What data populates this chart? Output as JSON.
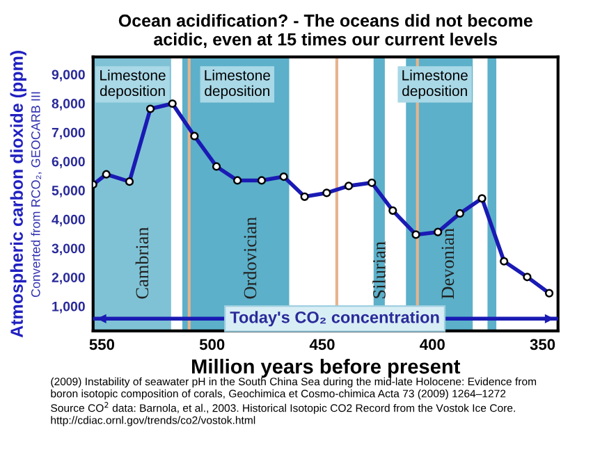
{
  "chart_data": {
    "type": "line",
    "title": "Ocean acidification? - The oceans did not become\nacidic, even at 15 times our current levels",
    "xlabel": "Million years before present",
    "ylabel": "Atmospheric carbon dioxide (ppm)",
    "x": [
      554,
      548,
      537.5,
      528,
      518,
      508,
      498,
      488.5,
      477.5,
      467.5,
      458,
      448,
      438,
      427.5,
      418,
      407.5,
      397.5,
      387.5,
      377.5,
      367.5,
      357,
      347
    ],
    "series": [
      {
        "color": "#1a1ab4",
        "values": [
          5200,
          5550,
          5300,
          7810,
          7990,
          6870,
          5820,
          5340,
          5340,
          5470,
          4780,
          4910,
          5150,
          5260,
          4300,
          3470,
          3560,
          4200,
          4720,
          2550,
          2010,
          1450
        ]
      }
    ],
    "marker": "circle",
    "line_style": "solid",
    "grid": false,
    "xlim": [
      554,
      343
    ],
    "xticks": [
      550,
      500,
      450,
      400,
      350
    ],
    "ylim": [
      150,
      9600
    ],
    "yticks": [
      {
        "value": 1000,
        "label": "1,000"
      },
      {
        "value": 2000,
        "label": "2,000"
      },
      {
        "value": 3000,
        "label": "3,000"
      },
      {
        "value": 4000,
        "label": "4,000"
      },
      {
        "value": 5000,
        "label": "5,000"
      },
      {
        "value": 6000,
        "label": "6,000"
      },
      {
        "value": 7000,
        "label": "7,000"
      },
      {
        "value": 8000,
        "label": "8,000"
      },
      {
        "value": 9000,
        "label": "9,000"
      }
    ],
    "bands": [
      {
        "axis": "x",
        "from": 554,
        "to": 518.6,
        "label": "Cambrian",
        "color": "#7fc2d5"
      },
      {
        "axis": "x",
        "from": 513.5,
        "to": 465,
        "label": "Ordovician",
        "color": "#5cb0c9"
      },
      {
        "axis": "x",
        "from": 426.7,
        "to": 421.6,
        "label": "Silurian",
        "color": "#5cb0c9"
      },
      {
        "axis": "x",
        "from": 412,
        "to": 381.7,
        "label": "Devonian",
        "color": "#5cb0c9"
      },
      {
        "axis": "x",
        "from": 375,
        "to": 371,
        "color": "#5cb0c9"
      }
    ],
    "ref_lines": [
      {
        "axis": "x",
        "value": 510.4,
        "color": "#e6b38c"
      },
      {
        "axis": "x",
        "value": 443.4,
        "color": "#e6b38c"
      },
      {
        "axis": "x",
        "value": 406.8,
        "color": "#e6b38c"
      },
      {
        "axis": "y",
        "value": 570,
        "label": "Today's CO₂ concentration",
        "color": "#1a1ab4"
      }
    ],
    "annotations": [
      "Limestone deposition",
      "Limestone deposition",
      "Limestone deposition",
      "Converted from RCO₂, GEOCARB III",
      "(2009) Instability of seawater pH in the South China Sea during the mid-late Holocene: Evidence from\nboron isotopic composition of corals, Geochimica et Cosmo-chimica Acta 73 (2009) 1264–1272",
      "Source CO$^{2}$ data: Barnola, et al., 2003. Historical Isotopic CO2 Record from the Vostok Ice Core.\nhttp://cdiac.ornl.gov/trends/co2/vostok.html"
    ]
  }
}
